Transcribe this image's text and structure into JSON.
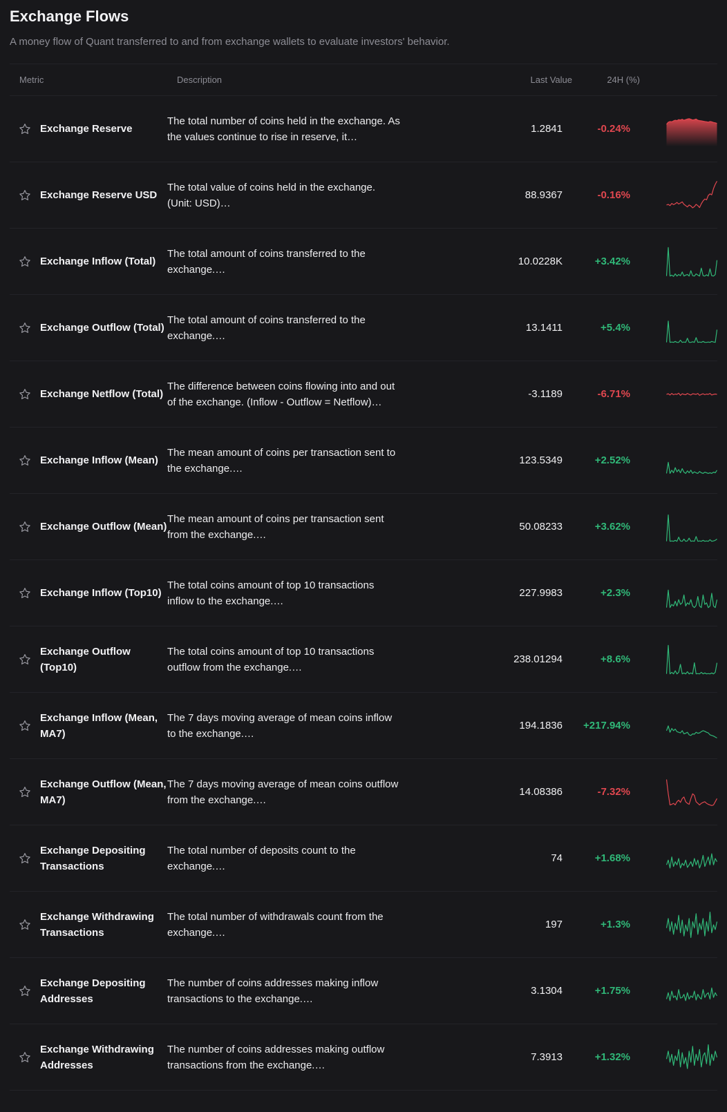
{
  "page": {
    "title": "Exchange Flows",
    "subtitle": "A money flow of Quant transferred to and from exchange wallets to evaluate investors' behavior."
  },
  "table": {
    "headers": {
      "metric": "Metric",
      "description": "Description",
      "last_value": "Last Value",
      "change_24h": "24H (%)"
    },
    "colors": {
      "negative": "#e0474f",
      "positive": "#30b878"
    },
    "rows": [
      {
        "metric": "Exchange Reserve",
        "description": "The total number of coins held in the exchange. As the values continue to rise in reserve, it…",
        "last_value": "1.2841",
        "change": "-0.24%",
        "trend": "negative",
        "spark_style": "area",
        "spark": [
          0.65,
          0.72,
          0.74,
          0.73,
          0.76,
          0.78,
          0.77,
          0.8,
          0.79,
          0.81,
          0.78,
          0.8,
          0.82,
          0.83,
          0.81,
          0.79,
          0.8,
          0.82,
          0.78,
          0.77,
          0.76,
          0.75,
          0.74,
          0.73,
          0.72,
          0.74,
          0.73,
          0.71,
          0.7,
          0.68
        ]
      },
      {
        "metric": "Exchange Reserve USD",
        "description": "The total value of coins held in the exchange. (Unit: USD)…",
        "last_value": "88.9367",
        "change": "-0.16%",
        "trend": "negative",
        "spark_style": "line",
        "spark": [
          0.2,
          0.22,
          0.18,
          0.25,
          0.21,
          0.24,
          0.28,
          0.23,
          0.26,
          0.3,
          0.22,
          0.18,
          0.14,
          0.2,
          0.17,
          0.11,
          0.15,
          0.22,
          0.18,
          0.12,
          0.24,
          0.33,
          0.39,
          0.36,
          0.5,
          0.55,
          0.52,
          0.72,
          0.85,
          0.95
        ]
      },
      {
        "metric": "Exchange Inflow (Total)",
        "description": "The total amount of coins transferred to the exchange.…",
        "last_value": "10.0228K",
        "change": "+3.42%",
        "trend": "positive",
        "spark_style": "line",
        "spark": [
          0.05,
          0.95,
          0.05,
          0.08,
          0.04,
          0.12,
          0.05,
          0.1,
          0.06,
          0.18,
          0.05,
          0.08,
          0.1,
          0.05,
          0.22,
          0.06,
          0.05,
          0.12,
          0.08,
          0.05,
          0.3,
          0.06,
          0.05,
          0.09,
          0.05,
          0.28,
          0.06,
          0.05,
          0.1,
          0.55
        ]
      },
      {
        "metric": "Exchange Outflow (Total)",
        "description": "The total amount of coins transferred to the exchange.…",
        "last_value": "13.1411",
        "change": "+5.4%",
        "trend": "positive",
        "spark_style": "line",
        "spark": [
          0.05,
          0.72,
          0.05,
          0.06,
          0.05,
          0.08,
          0.05,
          0.05,
          0.12,
          0.05,
          0.06,
          0.05,
          0.18,
          0.05,
          0.05,
          0.07,
          0.05,
          0.2,
          0.05,
          0.06,
          0.05,
          0.08,
          0.05,
          0.05,
          0.06,
          0.05,
          0.08,
          0.06,
          0.05,
          0.45
        ]
      },
      {
        "metric": "Exchange Netflow (Total)",
        "description": "The difference between coins flowing into and out of the exchange. (Inflow - Outflow = Netflow)…",
        "last_value": "-3.1189",
        "change": "-6.71%",
        "trend": "negative",
        "spark_style": "line",
        "spark": [
          0.5,
          0.52,
          0.48,
          0.53,
          0.49,
          0.51,
          0.5,
          0.54,
          0.47,
          0.52,
          0.5,
          0.49,
          0.53,
          0.5,
          0.48,
          0.52,
          0.51,
          0.5,
          0.53,
          0.47,
          0.5,
          0.52,
          0.49,
          0.51,
          0.5,
          0.53,
          0.48,
          0.5,
          0.51,
          0.5
        ]
      },
      {
        "metric": "Exchange Inflow (Mean)",
        "description": "The mean amount of coins per transaction sent to the exchange.…",
        "last_value": "123.5349",
        "change": "+2.52%",
        "trend": "positive",
        "spark_style": "line",
        "spark": [
          0.1,
          0.45,
          0.1,
          0.2,
          0.12,
          0.28,
          0.15,
          0.22,
          0.12,
          0.25,
          0.14,
          0.1,
          0.18,
          0.12,
          0.2,
          0.1,
          0.15,
          0.12,
          0.1,
          0.16,
          0.12,
          0.1,
          0.14,
          0.12,
          0.1,
          0.12,
          0.1,
          0.14,
          0.12,
          0.2
        ]
      },
      {
        "metric": "Exchange Outflow (Mean)",
        "description": "The mean amount of coins per transaction sent from the exchange.…",
        "last_value": "50.08233",
        "change": "+3.62%",
        "trend": "positive",
        "spark_style": "line",
        "spark": [
          0.05,
          0.88,
          0.05,
          0.06,
          0.05,
          0.08,
          0.05,
          0.18,
          0.06,
          0.05,
          0.12,
          0.05,
          0.06,
          0.15,
          0.05,
          0.06,
          0.05,
          0.2,
          0.05,
          0.06,
          0.05,
          0.08,
          0.05,
          0.06,
          0.05,
          0.1,
          0.05,
          0.06,
          0.08,
          0.12
        ]
      },
      {
        "metric": "Exchange Inflow (Top10)",
        "description": "The total coins amount of top 10 transactions inflow to the exchange.…",
        "last_value": "227.9983",
        "change": "+2.3%",
        "trend": "positive",
        "spark_style": "line",
        "spark": [
          0.05,
          0.6,
          0.05,
          0.15,
          0.1,
          0.25,
          0.1,
          0.3,
          0.15,
          0.2,
          0.45,
          0.1,
          0.2,
          0.15,
          0.3,
          0.1,
          0.05,
          0.12,
          0.4,
          0.1,
          0.05,
          0.45,
          0.15,
          0.2,
          0.05,
          0.1,
          0.5,
          0.1,
          0.05,
          0.3
        ]
      },
      {
        "metric": "Exchange Outflow (Top10)",
        "description": "The total coins amount of top 10 transactions outflow from the exchange.…",
        "last_value": "238.01294",
        "change": "+8.6%",
        "trend": "positive",
        "spark_style": "line",
        "spark": [
          0.05,
          0.95,
          0.05,
          0.1,
          0.05,
          0.15,
          0.05,
          0.1,
          0.35,
          0.05,
          0.08,
          0.05,
          0.12,
          0.05,
          0.08,
          0.05,
          0.4,
          0.05,
          0.06,
          0.05,
          0.1,
          0.05,
          0.08,
          0.05,
          0.06,
          0.05,
          0.08,
          0.05,
          0.1,
          0.4
        ]
      },
      {
        "metric": "Exchange Inflow (Mean, MA7)",
        "description": "The 7 days moving average of mean coins inflow to the exchange.…",
        "last_value": "194.1836",
        "change": "+217.94%",
        "trend": "positive",
        "spark_style": "line",
        "spark": [
          0.35,
          0.5,
          0.3,
          0.42,
          0.35,
          0.4,
          0.32,
          0.3,
          0.28,
          0.35,
          0.25,
          0.27,
          0.3,
          0.22,
          0.2,
          0.25,
          0.24,
          0.3,
          0.27,
          0.28,
          0.32,
          0.35,
          0.33,
          0.3,
          0.28,
          0.22,
          0.2,
          0.18,
          0.15,
          0.12
        ]
      },
      {
        "metric": "Exchange Outflow (Mean, MA7)",
        "description": "The 7 days moving average of mean coins outflow from the exchange.…",
        "last_value": "14.08386",
        "change": "-7.32%",
        "trend": "negative",
        "spark_style": "line",
        "spark": [
          0.9,
          0.45,
          0.1,
          0.12,
          0.15,
          0.1,
          0.2,
          0.25,
          0.18,
          0.3,
          0.35,
          0.2,
          0.15,
          0.12,
          0.3,
          0.45,
          0.4,
          0.2,
          0.15,
          0.1,
          0.15,
          0.18,
          0.2,
          0.15,
          0.12,
          0.1,
          0.08,
          0.1,
          0.2,
          0.3
        ]
      },
      {
        "metric": "Exchange Depositing Transactions",
        "description": "The total number of deposits count to the exchange.…",
        "last_value": "74",
        "change": "+1.68%",
        "trend": "positive",
        "spark_style": "line",
        "spark": [
          0.3,
          0.45,
          0.2,
          0.55,
          0.25,
          0.4,
          0.3,
          0.5,
          0.2,
          0.35,
          0.28,
          0.45,
          0.22,
          0.3,
          0.4,
          0.25,
          0.5,
          0.3,
          0.45,
          0.2,
          0.35,
          0.6,
          0.25,
          0.4,
          0.55,
          0.3,
          0.65,
          0.3,
          0.5,
          0.4
        ]
      },
      {
        "metric": "Exchange Withdrawing Transactions",
        "description": "The total number of withdrawals count from the exchange.…",
        "last_value": "197",
        "change": "+1.3%",
        "trend": "positive",
        "spark_style": "line",
        "spark": [
          0.4,
          0.7,
          0.3,
          0.6,
          0.2,
          0.55,
          0.35,
          0.8,
          0.25,
          0.65,
          0.15,
          0.5,
          0.3,
          0.7,
          0.1,
          0.6,
          0.4,
          0.85,
          0.2,
          0.55,
          0.35,
          0.7,
          0.15,
          0.6,
          0.3,
          0.9,
          0.25,
          0.5,
          0.35,
          0.6
        ]
      },
      {
        "metric": "Exchange Depositing Addresses",
        "description": "The number of coins addresses making inflow transactions to the exchange.…",
        "last_value": "3.1304",
        "change": "+1.75%",
        "trend": "positive",
        "spark_style": "line",
        "spark": [
          0.25,
          0.45,
          0.2,
          0.5,
          0.3,
          0.35,
          0.22,
          0.55,
          0.28,
          0.3,
          0.4,
          0.2,
          0.45,
          0.25,
          0.35,
          0.3,
          0.5,
          0.22,
          0.4,
          0.3,
          0.25,
          0.55,
          0.3,
          0.4,
          0.45,
          0.25,
          0.6,
          0.3,
          0.45,
          0.35
        ]
      },
      {
        "metric": "Exchange Withdrawing Addresses",
        "description": "The number of coins addresses making outflow transactions from the exchange.…",
        "last_value": "7.3913",
        "change": "+1.32%",
        "trend": "positive",
        "spark_style": "line",
        "spark": [
          0.45,
          0.7,
          0.35,
          0.6,
          0.25,
          0.55,
          0.4,
          0.75,
          0.2,
          0.65,
          0.3,
          0.5,
          0.15,
          0.7,
          0.35,
          0.85,
          0.25,
          0.6,
          0.4,
          0.75,
          0.2,
          0.55,
          0.65,
          0.3,
          0.9,
          0.25,
          0.6,
          0.4,
          0.7,
          0.5
        ]
      }
    ]
  }
}
